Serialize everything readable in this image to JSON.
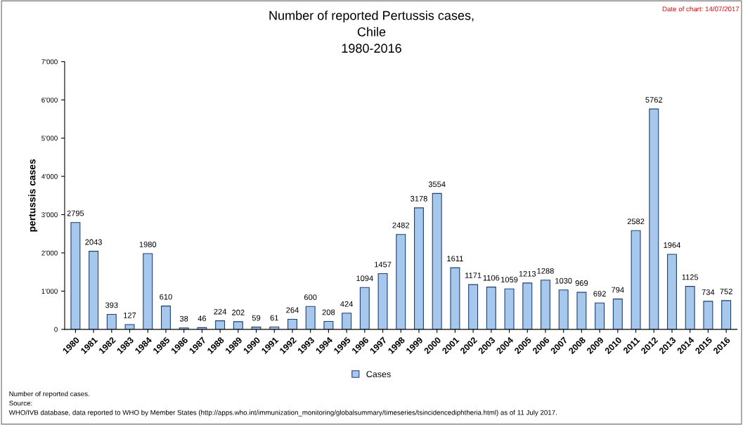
{
  "chart_data": {
    "type": "bar",
    "title": "Number of reported Pertussis cases,\nChile\n1980-2016",
    "ylabel": "pertussis cases",
    "categories": [
      "1980",
      "1981",
      "1982",
      "1983",
      "1984",
      "1985",
      "1986",
      "1987",
      "1988",
      "1989",
      "1990",
      "1991",
      "1992",
      "1993",
      "1994",
      "1995",
      "1996",
      "1997",
      "1998",
      "1999",
      "2000",
      "2001",
      "2002",
      "2003",
      "2004",
      "2005",
      "2006",
      "2007",
      "2008",
      "2009",
      "2010",
      "2011",
      "2012",
      "2013",
      "2014",
      "2015",
      "2016"
    ],
    "series": [
      {
        "name": "Cases",
        "color": "#a6c8ec",
        "values": [
          2795,
          2043,
          393,
          127,
          1980,
          610,
          38,
          46,
          224,
          202,
          59,
          61,
          264,
          600,
          208,
          424,
          1094,
          1457,
          2482,
          3178,
          3554,
          1611,
          1171,
          1106,
          1059,
          1213,
          1288,
          1030,
          969,
          692,
          794,
          2582,
          5762,
          1964,
          1125,
          734,
          752
        ]
      }
    ],
    "ylim": [
      0,
      7000
    ],
    "yticks": [
      {
        "value": 0,
        "label": "0"
      },
      {
        "value": 1000,
        "label": "1'000"
      },
      {
        "value": 2000,
        "label": "2'000"
      },
      {
        "value": 3000,
        "label": "3'000"
      },
      {
        "value": 4000,
        "label": "4'000"
      },
      {
        "value": 5000,
        "label": "5'000"
      },
      {
        "value": 6000,
        "label": "6'000"
      },
      {
        "value": 7000,
        "label": "7'000"
      }
    ],
    "data_labels": true,
    "grid": false,
    "legend": "bottom",
    "annotations": [
      "Date of chart: 14/07/2017",
      "Number of reported cases.",
      "Source:",
      "WHO/IVB database, data reported to WHO by Member States (http://apps.who.int/immunization_monitoring/globalsummary/timeseries/tsincidencediphtheria.html) as of 11 July 2017."
    ]
  }
}
